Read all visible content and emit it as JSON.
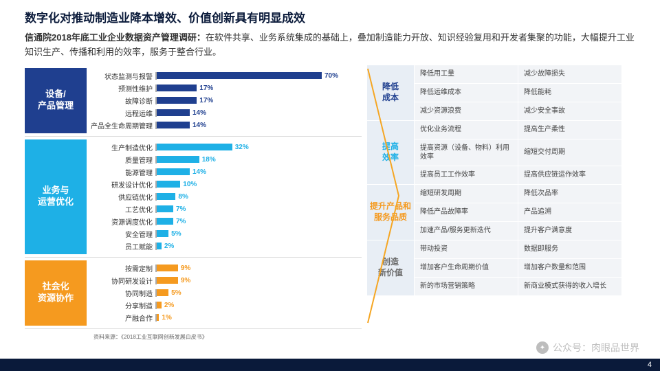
{
  "title": "数字化对推动制造业降本增效、价值创新具有明显成效",
  "subtitle_bold": "信通院2018年底工业企业数据资产管理调研：",
  "subtitle_rest": "在软件共享、业务系统集成的基础上，叠加制造能力开放、知识经验复用和开发者集聚的功能，大幅提升工业知识生产、传播和利用的效率，服务于整合行业。",
  "max_pct": 70,
  "sections": [
    {
      "name": "设备/\n产品管理",
      "color": "#1f3f8f",
      "bar_color": "#1f3f8f",
      "txt": "#1f3f8f",
      "items": [
        {
          "label": "状态监测与报警",
          "v": 70
        },
        {
          "label": "预测性维护",
          "v": 17
        },
        {
          "label": "故障诊断",
          "v": 17
        },
        {
          "label": "远程运维",
          "v": 14
        },
        {
          "label": "产品全生命周期管理",
          "v": 14
        }
      ]
    },
    {
      "name": "业务与\n运营优化",
      "color": "#1eb0e6",
      "bar_color": "#1eb0e6",
      "txt": "#1eb0e6",
      "items": [
        {
          "label": "生产制造优化",
          "v": 32
        },
        {
          "label": "质量管理",
          "v": 18
        },
        {
          "label": "能源管理",
          "v": 14
        },
        {
          "label": "研发设计优化",
          "v": 10
        },
        {
          "label": "供应链优化",
          "v": 8
        },
        {
          "label": "工艺优化",
          "v": 7
        },
        {
          "label": "资源调度优化",
          "v": 7
        },
        {
          "label": "安全管理",
          "v": 5
        },
        {
          "label": "员工赋能",
          "v": 2
        }
      ]
    },
    {
      "name": "社会化\n资源协作",
      "color": "#f59a1f",
      "bar_color": "#f59a1f",
      "txt": "#f59a1f",
      "items": [
        {
          "label": "按需定制",
          "v": 9
        },
        {
          "label": "协同研发设计",
          "v": 9
        },
        {
          "label": "协同制造",
          "v": 5
        },
        {
          "label": "分享制造",
          "v": 2
        },
        {
          "label": "产融合作",
          "v": 1
        }
      ]
    }
  ],
  "source": "资料来源：《2018工业互联网创新发展白皮书》",
  "right": [
    {
      "name": "降低\n成本",
      "color": "#1f3f8f",
      "rows": [
        [
          "降低用工量",
          "减少故障损失"
        ],
        [
          "降低运维成本",
          "降低能耗"
        ],
        [
          "减少资源浪费",
          "减少安全事故"
        ]
      ]
    },
    {
      "name": "提高\n效率",
      "color": "#1eb0e6",
      "rows": [
        [
          "优化业务流程",
          "提高生产柔性"
        ],
        [
          "提高资源（设备、物料）利用效率",
          "缩短交付周期"
        ],
        [
          "提高员工工作效率",
          "提高供应链运作效率"
        ]
      ]
    },
    {
      "name": "提升产品和\n服务品质",
      "color": "#f59a1f",
      "rows": [
        [
          "缩短研发周期",
          "降低次品率"
        ],
        [
          "降低产品故障率",
          "产品追溯"
        ],
        [
          "加速产品/服务更新迭代",
          "提升客户满意度"
        ]
      ]
    },
    {
      "name": "创造\n新价值",
      "color": "#6a6a6a",
      "rows": [
        [
          "带动投资",
          "数据即服务"
        ],
        [
          "增加客户生命周期价值",
          "增加客户数量和范围"
        ],
        [
          "新的市场营销策略",
          "新商业模式获得的收入增长"
        ]
      ]
    }
  ],
  "chevron_color": "#f5a623",
  "page_num": "4",
  "watermark": "公众号：肉眼品世界"
}
